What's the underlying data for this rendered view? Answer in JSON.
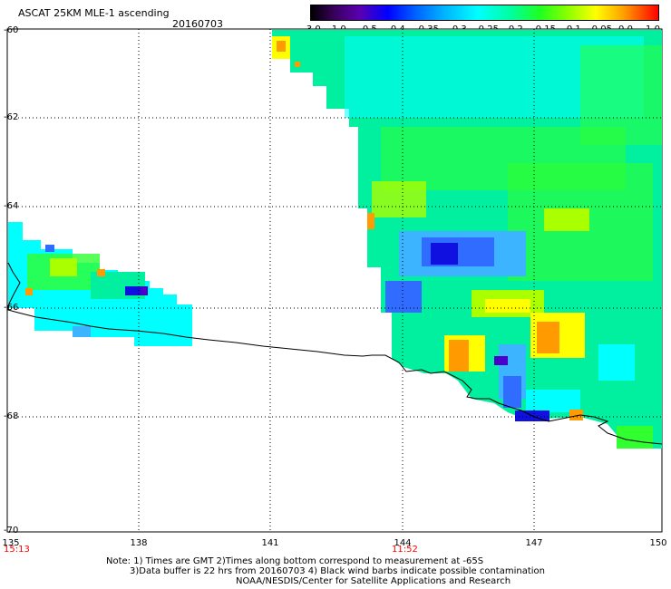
{
  "header": {
    "title": "ASCAT 25KM MLE-1 ascending",
    "date": "20160703"
  },
  "colorbar": {
    "labels": [
      "-3.0",
      "-1.0",
      "-0.5",
      "-0.4",
      "-0.35",
      "-0.3",
      "-0.25",
      "-0.2",
      "-0.15",
      "-0.1",
      "-0.05",
      "0.0",
      "1.0"
    ]
  },
  "axes": {
    "y_labels": [
      "-60",
      "-62",
      "-64",
      "-66",
      "-68",
      "-70"
    ],
    "x_labels": [
      "135",
      "138",
      "141",
      "144",
      "147",
      "150"
    ],
    "time_labels": [
      "15:13",
      "11:52"
    ]
  },
  "notes": {
    "line1": "Note: 1) Times are GMT 2)Times along bottom correspond to measurement at -65S",
    "line2": "3)Data buffer is 22 hrs from 20160703 4) Black wind barbs indicate possible contamination",
    "line3": "NOAA/NESDIS/Center for Satellite Applications and Research"
  },
  "colors": {
    "deep_blue": "#1010e0",
    "blue": "#2f6cff",
    "light_blue": "#3cb4ff",
    "cyan": "#00ffff",
    "aqua_green": "#00f0a0",
    "green": "#30ff30",
    "yellow_green": "#aaff00",
    "yellow": "#ffff00",
    "orange": "#ff9a00",
    "purple": "#4a00c8"
  }
}
